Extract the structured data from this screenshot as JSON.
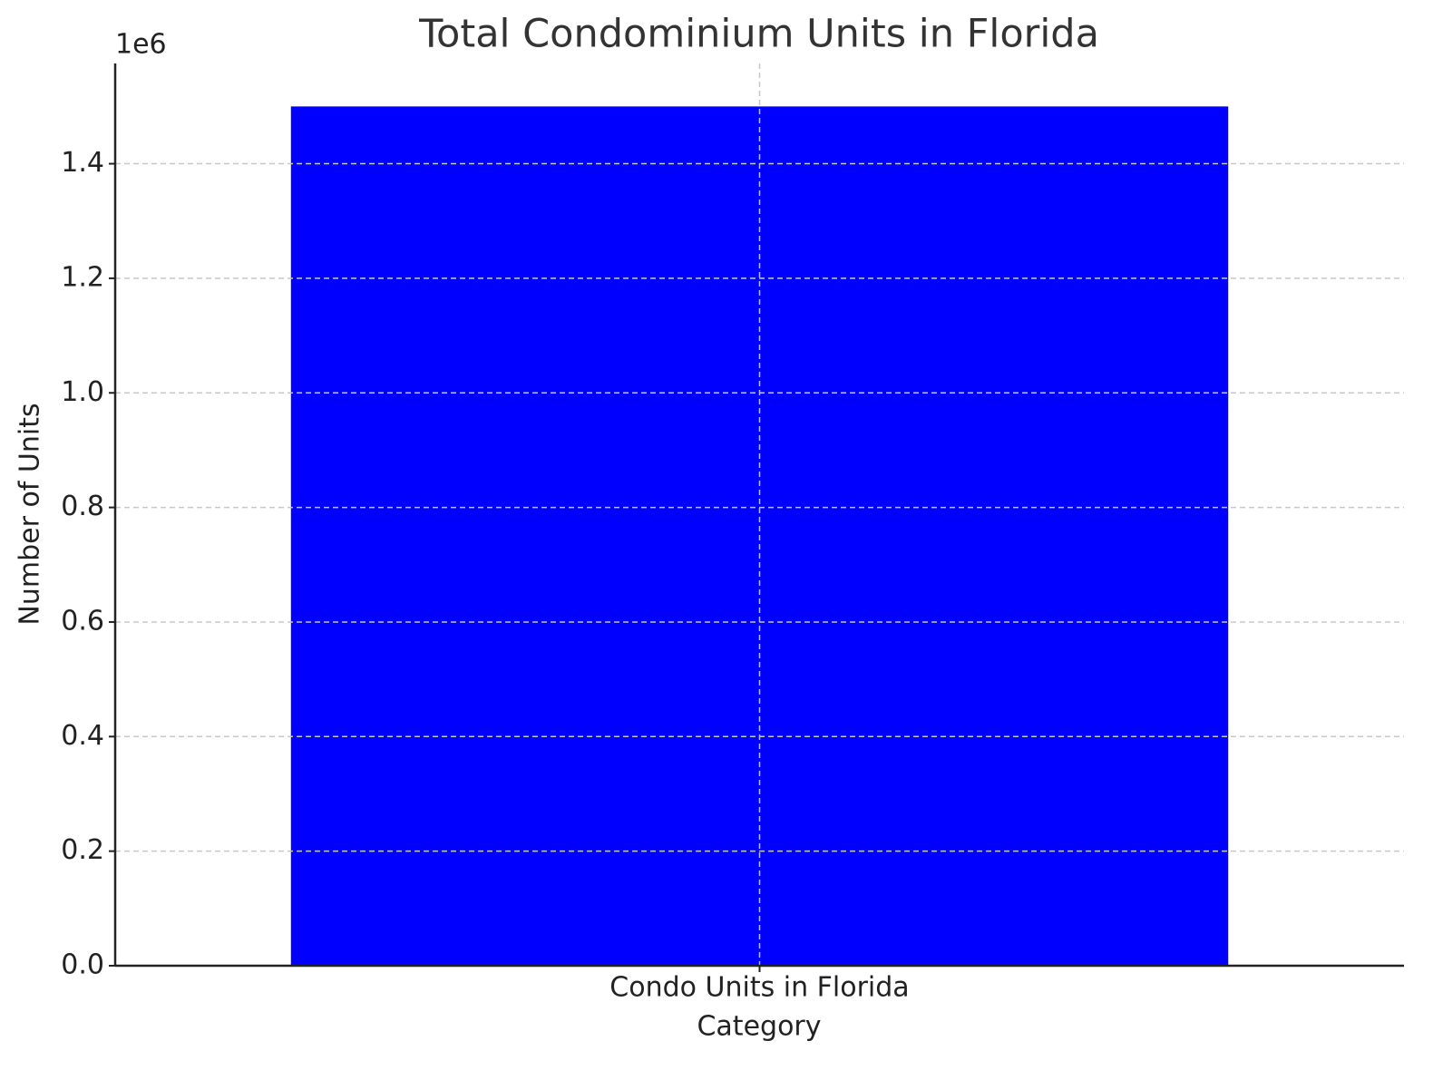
{
  "chart_data": {
    "type": "bar",
    "title": "Total Condominium Units in Florida",
    "x_label": "Category",
    "y_label": "Number of Units",
    "y_offset_label": "1e6",
    "categories": [
      "Condo Units in Florida"
    ],
    "values": [
      1500000
    ],
    "color": "#0000ff",
    "ylim": [
      0,
      1575000
    ],
    "yticks": [
      {
        "value": 0,
        "label": "0.0"
      },
      {
        "value": 200000,
        "label": "0.2"
      },
      {
        "value": 400000,
        "label": "0.4"
      },
      {
        "value": 600000,
        "label": "0.6"
      },
      {
        "value": 800000,
        "label": "0.8"
      },
      {
        "value": 1000000,
        "label": "1.0"
      },
      {
        "value": 1200000,
        "label": "1.2"
      },
      {
        "value": 1400000,
        "label": "1.4"
      }
    ],
    "grid": true
  }
}
